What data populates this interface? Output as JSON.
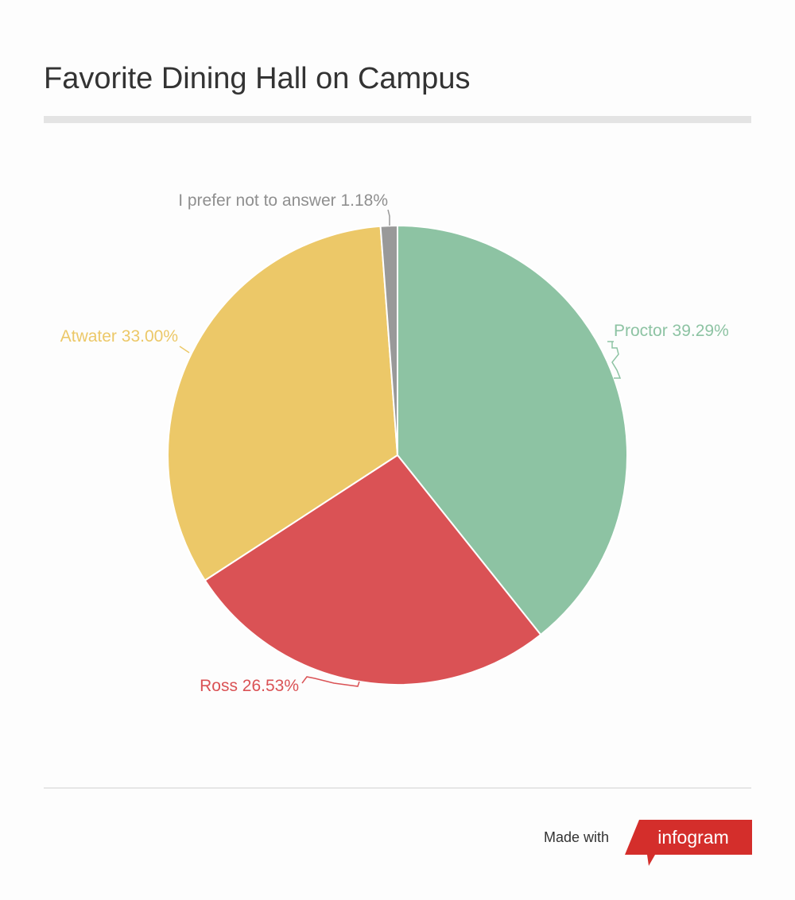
{
  "chart_data": {
    "type": "pie",
    "title": "Favorite Dining Hall on Campus",
    "slices": [
      {
        "label": "Proctor",
        "value": 39.29,
        "display": "Proctor 39.29%",
        "color": "#8dc3a3"
      },
      {
        "label": "Ross",
        "value": 26.53,
        "display": "Ross 26.53%",
        "color": "#da5255"
      },
      {
        "label": "Atwater",
        "value": 33.0,
        "display": "Atwater 33.00%",
        "color": "#ecc868"
      },
      {
        "label": "I prefer not to answer",
        "value": 1.18,
        "display": "I prefer not to answer 1.18%",
        "color": "#999999"
      }
    ],
    "start_angle": "12 o'clock",
    "direction": "clockwise",
    "label_placement": "outside"
  },
  "footer": {
    "made_with": "Made with",
    "brand": "infogram",
    "brand_color": "#d42e2b"
  },
  "colors": {
    "title_text": "#333333",
    "background": "#fdfdfd"
  }
}
